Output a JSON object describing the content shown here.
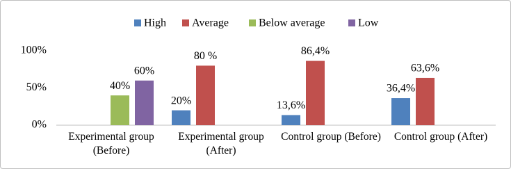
{
  "chart_data": {
    "type": "bar",
    "categories": [
      "Experimental group (Before)",
      "Experimental group (After)",
      "Control group (Before)",
      "Control group (After)"
    ],
    "series": [
      {
        "name": "High",
        "color": "#4f81bd",
        "values": [
          null,
          20,
          13.6,
          36.4
        ],
        "value_labels": [
          null,
          "20%",
          "13,6%",
          "36,4%"
        ]
      },
      {
        "name": "Average",
        "color": "#c0504d",
        "values": [
          null,
          80,
          86.4,
          63.6
        ],
        "value_labels": [
          null,
          "80 %",
          "86,4%",
          "63,6%"
        ]
      },
      {
        "name": "Below average",
        "color": "#9bbb59",
        "values": [
          40,
          null,
          null,
          null
        ],
        "value_labels": [
          "40%",
          null,
          null,
          null
        ]
      },
      {
        "name": "Low",
        "color": "#8064a2",
        "values": [
          60,
          null,
          null,
          null
        ],
        "value_labels": [
          "60%",
          null,
          null,
          null
        ]
      }
    ],
    "ylim": [
      0,
      100
    ],
    "yticks": [
      {
        "value": 0,
        "label": "0%"
      },
      {
        "value": 50,
        "label": "50%"
      },
      {
        "value": 100,
        "label": "100%"
      }
    ],
    "grid": false,
    "legend": "top"
  }
}
